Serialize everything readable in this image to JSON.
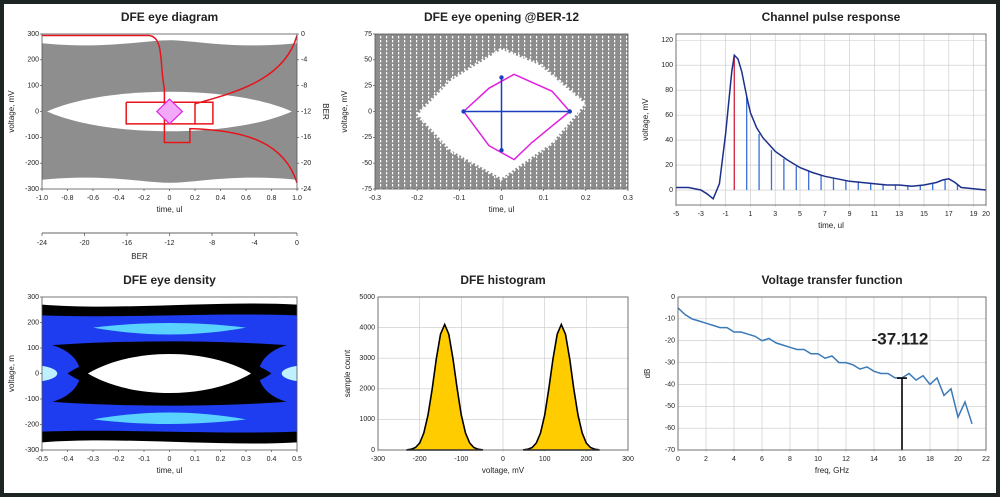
{
  "chart_data": [
    {
      "type": "eye",
      "title": "DFE  eye diagram",
      "xlabel": "time, ul",
      "ylabel": "voltage, mV",
      "y2label": "BER",
      "x2label": "BER",
      "xlim": [
        -1,
        1
      ],
      "xticks": [
        {
          "value": -1,
          "label": "-1.0"
        },
        -0.8,
        -0.6,
        -0.4,
        -0.2,
        0,
        0.2,
        0.4,
        0.6,
        0.8,
        {
          "value": 1,
          "label": "1.0"
        }
      ],
      "ylim": [
        -300,
        300
      ],
      "yticks": [
        -300,
        -200,
        -100,
        0,
        100,
        200,
        300
      ],
      "y2lim": [
        -24,
        0
      ],
      "y2ticks": [
        0,
        -4,
        -8,
        -12,
        -16,
        -20,
        -24
      ],
      "x2lim": [
        -24,
        0
      ],
      "x2ticks": [
        -24,
        -20,
        -16,
        -12,
        -8,
        -4,
        0
      ],
      "grid": false
    },
    {
      "type": "contour",
      "title": "DFE  eye opening @BER-12",
      "xlabel": "time, ul",
      "ylabel": "voltage, mV",
      "xlim": [
        -0.3,
        0.3
      ],
      "xticks": [
        -0.3,
        -0.2,
        -0.1,
        0,
        0.1,
        0.2,
        0.3
      ],
      "ylim": [
        -75,
        75
      ],
      "yticks": [
        -75,
        -50,
        -25,
        0,
        25,
        50,
        75
      ],
      "grid": false
    },
    {
      "type": "line",
      "title": "Channel pulse response",
      "xlabel": "time, ul",
      "ylabel": "voltage, mV",
      "xlim": [
        -5,
        20
      ],
      "xticks": [
        -5,
        -3,
        -1,
        1,
        3,
        5,
        7,
        9,
        11,
        13,
        15,
        17,
        19,
        20
      ],
      "ylim": [
        -12,
        125
      ],
      "yticks": [
        0,
        20,
        40,
        60,
        80,
        100,
        120
      ],
      "grid": true,
      "series": [
        {
          "style": "stem",
          "color": "#3a6fd8",
          "x": [
            0.7,
            1.7,
            2.7,
            3.7,
            4.7,
            5.7,
            6.7,
            7.7,
            8.7,
            9.7,
            10.7,
            11.7,
            12.7,
            13.7,
            14.7,
            15.7,
            16.7,
            17.7
          ],
          "values": [
            75,
            45,
            32,
            25,
            19,
            15,
            12,
            10,
            8,
            7,
            6,
            5,
            4,
            4,
            4,
            5,
            8,
            4
          ]
        },
        {
          "style": "stem",
          "color": "#d0213a",
          "x": [
            -0.3
          ],
          "values": [
            108
          ]
        },
        {
          "style": "line",
          "color": "#1c2f8a",
          "x": [
            -5,
            -4,
            -3,
            -2.5,
            -2,
            -1.5,
            -1,
            -0.7,
            -0.5,
            -0.3,
            0,
            0.3,
            0.7,
            1,
            1.5,
            2,
            3,
            4,
            5,
            6,
            7,
            8,
            9,
            10,
            11,
            12,
            13,
            14,
            15,
            16,
            16.5,
            17,
            17.5,
            18,
            19,
            20
          ],
          "values": [
            2,
            2,
            0,
            -3,
            -7,
            5,
            45,
            75,
            95,
            108,
            105,
            95,
            75,
            62,
            50,
            42,
            31,
            24,
            18,
            14,
            11,
            9,
            7,
            6,
            5,
            4,
            4,
            3,
            4,
            6,
            8,
            9,
            6,
            2,
            1,
            0
          ]
        }
      ]
    },
    {
      "type": "density",
      "title": "DFE  eye density",
      "xlabel": "time, ul",
      "ylabel": "voltage, m",
      "xlim": [
        -0.5,
        0.5
      ],
      "xticks": [
        -0.5,
        -0.4,
        -0.3,
        -0.2,
        -0.1,
        0,
        0.1,
        0.2,
        0.3,
        0.4,
        0.5
      ],
      "ylim": [
        -300,
        300
      ],
      "yticks": [
        -300,
        -200,
        -100,
        0,
        100,
        200,
        300
      ],
      "grid": false
    },
    {
      "type": "area",
      "title": "DFE  histogram",
      "xlabel": "voltage, mV",
      "ylabel": "sample count",
      "xlim": [
        -300,
        300
      ],
      "xticks": [
        -300,
        -200,
        -100,
        0,
        100,
        200,
        300
      ],
      "ylim": [
        0,
        5000
      ],
      "yticks": [
        0,
        1000,
        2000,
        3000,
        4000,
        5000
      ],
      "grid": true,
      "series": [
        {
          "color": "#ffcc00",
          "x": [
            -230,
            -220,
            -210,
            -200,
            -190,
            -180,
            -170,
            -160,
            -150,
            -140,
            -130,
            -120,
            -110,
            -100,
            -90,
            -80,
            -70,
            -60,
            -50
          ],
          "values": [
            6,
            25,
            81,
            230,
            555,
            1140,
            1996,
            2977,
            3785,
            4100,
            3785,
            2977,
            1996,
            1140,
            555,
            230,
            81,
            25,
            6
          ]
        },
        {
          "color": "#ffcc00",
          "x": [
            50,
            60,
            70,
            80,
            90,
            100,
            110,
            120,
            130,
            140,
            150,
            160,
            170,
            180,
            190,
            200,
            210,
            220,
            230
          ],
          "values": [
            6,
            25,
            81,
            230,
            555,
            1140,
            1996,
            2977,
            3785,
            4100,
            3785,
            2977,
            1996,
            1140,
            555,
            230,
            81,
            25,
            6
          ]
        }
      ]
    },
    {
      "type": "line",
      "title": "Voltage transfer function",
      "xlabel": "freq, GHz",
      "ylabel": "dB",
      "xlim": [
        0,
        22
      ],
      "xticks": [
        0,
        2,
        4,
        6,
        8,
        10,
        12,
        14,
        16,
        18,
        20,
        22
      ],
      "ylim": [
        -70,
        0
      ],
      "yticks": [
        -70,
        -60,
        -50,
        -40,
        -30,
        -20,
        -10,
        0
      ],
      "grid": true,
      "series": [
        {
          "style": "line",
          "color": "#3a7ab8",
          "x": [
            0,
            0.5,
            1,
            1.5,
            2,
            2.5,
            3,
            3.5,
            4,
            4.5,
            5,
            5.5,
            6,
            6.5,
            7,
            7.5,
            8,
            8.5,
            9,
            9.5,
            10,
            10.5,
            11,
            11.5,
            12,
            12.5,
            13,
            13.5,
            14,
            14.5,
            15,
            15.5,
            16,
            16.5,
            17,
            17.5,
            18,
            18.5,
            19,
            19.5,
            20,
            20.5,
            21
          ],
          "values": [
            -5,
            -8,
            -10,
            -11,
            -12,
            -13,
            -14,
            -14,
            -16,
            -16,
            -17,
            -18,
            -20,
            -19,
            -21,
            -22,
            -23,
            -24,
            -24,
            -26,
            -26,
            -28,
            -27,
            -30,
            -30,
            -31,
            -33,
            -32,
            -34,
            -35,
            -35,
            -37,
            -37,
            -35,
            -38,
            -36,
            -40,
            -37,
            -45,
            -42,
            -55,
            -48,
            -58
          ]
        }
      ],
      "marker": {
        "x": 16,
        "y": -37.112,
        "label": "-37.112"
      }
    }
  ]
}
